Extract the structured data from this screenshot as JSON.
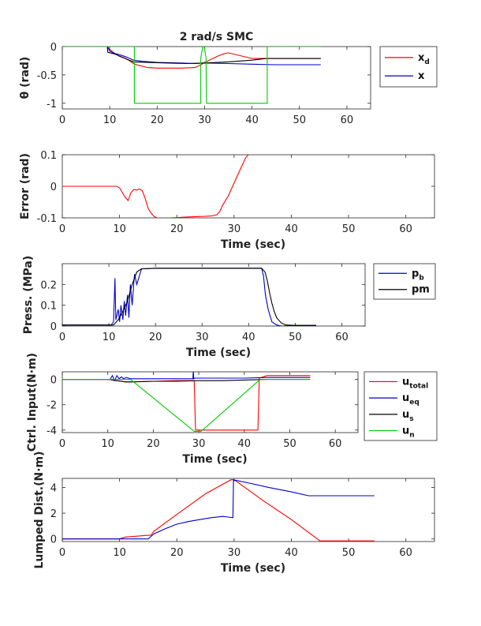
{
  "chart_data": [
    {
      "type": "line",
      "title": "2 rad/s SMC",
      "ylabel": "θ (rad)",
      "xlabel": "",
      "xlim": [
        0,
        65
      ],
      "ylim": [
        -1.1,
        0
      ],
      "xticks": [
        0,
        10,
        20,
        30,
        40,
        50,
        60
      ],
      "yticks": [
        0,
        -0.5,
        -1
      ],
      "ytick_labels": [
        "0",
        "-0.5",
        "-1"
      ],
      "legend_position": "outside-right",
      "series": [
        {
          "legend_main": "x",
          "legend_sub": "d",
          "color": "#ff0000",
          "x": [
            0,
            9.5,
            10,
            11,
            12,
            13,
            14,
            15,
            16,
            18,
            20,
            25,
            28,
            29,
            30,
            31,
            32,
            33,
            34,
            35,
            40,
            45,
            50,
            54.5
          ],
          "y": [
            0,
            0,
            -0.05,
            -0.12,
            -0.17,
            -0.2,
            -0.24,
            -0.3,
            -0.33,
            -0.37,
            -0.38,
            -0.38,
            -0.37,
            -0.33,
            -0.28,
            -0.24,
            -0.2,
            -0.16,
            -0.13,
            -0.11,
            -0.21,
            -0.21,
            -0.21,
            -0.21
          ]
        },
        {
          "legend_main": "x",
          "legend_sub": "",
          "color": "#0000cc",
          "x": [
            0,
            9.5,
            10,
            11,
            12,
            13,
            14,
            15,
            17,
            20,
            25,
            28,
            30,
            35,
            40,
            45,
            50,
            54.5
          ],
          "y": [
            0,
            0,
            -0.08,
            -0.12,
            -0.14,
            -0.17,
            -0.2,
            -0.24,
            -0.26,
            -0.28,
            -0.29,
            -0.3,
            -0.29,
            -0.3,
            -0.31,
            -0.32,
            -0.32,
            -0.32
          ]
        },
        {
          "color": "#000000",
          "x": [
            0,
            9.5,
            9.6,
            11,
            13,
            15,
            18,
            22,
            26,
            30,
            35,
            40,
            43,
            45,
            50,
            54.5
          ],
          "y": [
            0,
            0,
            -0.1,
            -0.13,
            -0.2,
            -0.27,
            -0.28,
            -0.29,
            -0.3,
            -0.29,
            -0.27,
            -0.24,
            -0.21,
            -0.21,
            -0.21,
            -0.21
          ]
        },
        {
          "color": "#00cc00",
          "x": [
            0,
            15.2,
            15.2,
            29.2,
            29.2,
            29.5,
            29.6,
            29.9,
            30.0,
            30.3,
            30.4,
            43.2,
            43.2,
            54.5
          ],
          "y": [
            0,
            0,
            -1,
            -1,
            -0.2,
            -0.05,
            0,
            0,
            -0.05,
            -0.2,
            -1,
            -1,
            0,
            0
          ]
        }
      ]
    },
    {
      "type": "line",
      "title": "",
      "ylabel": "Error (rad)",
      "xlabel": "Time (sec)",
      "xlim": [
        0,
        65
      ],
      "ylim": [
        -0.1,
        0.1
      ],
      "xticks": [
        0,
        10,
        20,
        30,
        40,
        50,
        60
      ],
      "yticks": [
        0.1,
        0,
        -0.1
      ],
      "ytick_labels": [
        "0.1",
        "0",
        "-0.1"
      ],
      "series": [
        {
          "color": "#ff0000",
          "x": [
            0,
            9.5,
            10,
            10.5,
            11,
            11.5,
            12,
            12.5,
            13,
            13.5,
            14,
            14.5,
            15,
            15.5,
            16,
            16.5,
            17,
            22,
            25,
            26,
            27,
            27.5,
            28,
            29,
            30,
            31,
            32,
            32.5
          ],
          "y": [
            0,
            0,
            -0.005,
            -0.02,
            -0.035,
            -0.045,
            -0.02,
            -0.01,
            -0.012,
            -0.008,
            -0.015,
            -0.04,
            -0.07,
            -0.085,
            -0.095,
            -0.1,
            -0.102,
            -0.097,
            -0.095,
            -0.094,
            -0.09,
            -0.08,
            -0.06,
            -0.03,
            0.01,
            0.05,
            0.09,
            0.1
          ]
        }
      ]
    },
    {
      "type": "line",
      "title": "",
      "ylabel": "Press. (MPa)",
      "xlabel": "Time (sec)",
      "xlim": [
        0,
        65
      ],
      "ylim": [
        0,
        0.3
      ],
      "xticks": [
        0,
        10,
        20,
        30,
        40,
        50,
        60
      ],
      "yticks": [
        0,
        0.1,
        0.2
      ],
      "ytick_labels": [
        "0",
        "0.1",
        "0.2"
      ],
      "legend_position": "outside-right",
      "series": [
        {
          "legend_main": "p",
          "legend_sub": "b",
          "color": "#0000cc",
          "x": [
            0,
            10.5,
            11,
            11.3,
            11.5,
            12,
            12.3,
            12.6,
            13,
            13.3,
            13.6,
            14,
            14.3,
            14.6,
            15,
            15.5,
            16,
            17,
            20,
            30,
            40,
            42.8,
            43.2,
            43.6,
            44.2,
            45,
            46,
            47,
            50,
            54.5
          ],
          "y": [
            0.005,
            0.005,
            0.02,
            0.23,
            0.03,
            0.08,
            0.02,
            0.1,
            0.03,
            0.12,
            0.05,
            0.15,
            0.04,
            0.2,
            0.1,
            0.25,
            0.2,
            0.275,
            0.278,
            0.278,
            0.278,
            0.278,
            0.24,
            0.15,
            0.08,
            0.02,
            0.005,
            0,
            0.003,
            0.003
          ]
        },
        {
          "legend_main": "pm",
          "legend_sub": "",
          "color": "#000000",
          "x": [
            0,
            11,
            12,
            13,
            14,
            15,
            16,
            17,
            20,
            30,
            40,
            42.8,
            43.5,
            44,
            44.5,
            45,
            45.5,
            46,
            47,
            48,
            50,
            54.5
          ],
          "y": [
            0.005,
            0.005,
            0.03,
            0.07,
            0.12,
            0.2,
            0.26,
            0.275,
            0.278,
            0.278,
            0.278,
            0.278,
            0.26,
            0.22,
            0.16,
            0.11,
            0.07,
            0.04,
            0.015,
            0.005,
            0.003,
            0.003
          ]
        }
      ]
    },
    {
      "type": "line",
      "title": "",
      "ylabel": "Ctrl. Input(N·m)",
      "xlabel": "Time (sec)",
      "xlim": [
        0,
        65
      ],
      "ylim": [
        -4.2,
        0.6
      ],
      "xticks": [
        0,
        10,
        20,
        30,
        40,
        50,
        60
      ],
      "yticks": [
        0,
        -2,
        -4
      ],
      "ytick_labels": [
        "0",
        "-2",
        "-4"
      ],
      "legend_position": "outside-right",
      "series": [
        {
          "legend_main": "u",
          "legend_sub": "total",
          "color": "#ff0000",
          "x": [
            0,
            10,
            12,
            14,
            15,
            20,
            25,
            29,
            29.3,
            29.5,
            35,
            40,
            43,
            43.3,
            45,
            50,
            54.5
          ],
          "y": [
            0,
            0,
            -0.1,
            -0.2,
            -0.2,
            -0.15,
            -0.1,
            -0.1,
            -4,
            -4,
            -4,
            -4,
            -4,
            0.1,
            0.3,
            0.3,
            0.3
          ]
        },
        {
          "legend_main": "u",
          "legend_sub": "eq",
          "color": "#0000cc",
          "x": [
            0,
            10.5,
            11,
            11.5,
            12,
            12.5,
            13,
            13.5,
            14,
            15,
            20,
            25,
            28.7,
            28.8,
            28.9,
            29.2,
            30,
            35,
            40,
            45,
            50,
            54.5
          ],
          "y": [
            0,
            0,
            0.3,
            -0.1,
            0.3,
            0.05,
            0.2,
            0.05,
            0.15,
            0.05,
            0.05,
            0.05,
            0.05,
            0.7,
            0.05,
            0.1,
            0.1,
            0.1,
            0.1,
            0.15,
            0.15,
            0.15
          ]
        },
        {
          "legend_main": "u",
          "legend_sub": "s",
          "color": "#000000",
          "x": [
            0,
            10.5,
            11,
            12,
            13,
            14,
            15,
            20,
            25,
            30,
            35,
            40,
            45,
            50,
            54.5
          ],
          "y": [
            0,
            0,
            -0.05,
            -0.1,
            -0.15,
            -0.2,
            -0.2,
            -0.15,
            -0.15,
            -0.1,
            -0.1,
            -0.05,
            0,
            0,
            0
          ]
        },
        {
          "legend_main": "u",
          "legend_sub": "n",
          "color": "#00cc00",
          "x": [
            0,
            15,
            29,
            29.8,
            30.5,
            43.5,
            54.5
          ],
          "y": [
            0,
            0,
            -4.1,
            -4.1,
            -4.1,
            0,
            0
          ]
        }
      ]
    },
    {
      "type": "line",
      "title": "",
      "ylabel": "Lumped Dist.(N·m)",
      "xlabel": "Time (sec)",
      "xlim": [
        0,
        65
      ],
      "ylim": [
        -0.2,
        4.7
      ],
      "xticks": [
        0,
        10,
        20,
        30,
        40,
        50,
        60
      ],
      "yticks": [
        0,
        2,
        4
      ],
      "ytick_labels": [
        "0",
        "2",
        "4"
      ],
      "series": [
        {
          "color": "#ff0000",
          "x": [
            0,
            10,
            11,
            15.5,
            16,
            20,
            25,
            29.5,
            30,
            35,
            40,
            45,
            50,
            54.5
          ],
          "y": [
            0,
            0,
            0.15,
            0.3,
            0.6,
            1.9,
            3.5,
            4.6,
            4.6,
            3.0,
            1.5,
            -0.15,
            -0.15,
            -0.15
          ]
        },
        {
          "color": "#0000cc",
          "x": [
            0,
            15,
            15.5,
            16,
            18,
            20,
            22,
            24,
            26,
            28,
            29,
            29.8,
            29.9,
            30.3,
            33,
            36,
            40,
            43,
            45,
            50,
            54.5
          ],
          "y": [
            0,
            0,
            0.2,
            0.4,
            0.8,
            1.15,
            1.35,
            1.5,
            1.65,
            1.75,
            1.7,
            1.65,
            4.55,
            4.55,
            4.3,
            4.0,
            3.65,
            3.35,
            3.35,
            3.35,
            3.35
          ]
        }
      ]
    }
  ]
}
